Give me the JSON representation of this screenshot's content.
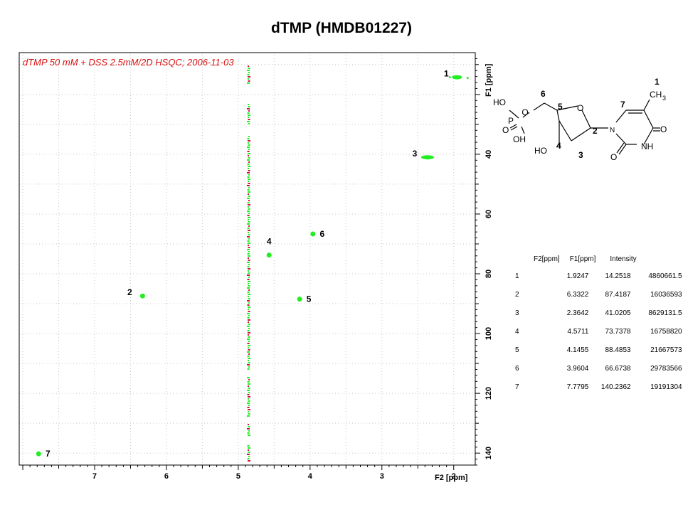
{
  "title": "dTMP (HMDB01227)",
  "chart_data": {
    "type": "scatter",
    "title": "dTMP (HMDB01227)",
    "annotation": "dTMP  50 mM + DSS 2.5mM/2D HSQC; 2006-11-03",
    "xlabel": "F2 [ppm]",
    "ylabel": "F1 [ppm]",
    "xlim": [
      8.05,
      1.7
    ],
    "ylim": [
      144,
      6
    ],
    "x_reversed": true,
    "y_reversed": true,
    "xticks": [
      7,
      6,
      5,
      4,
      3,
      2
    ],
    "yticks": [
      40,
      60,
      80,
      100,
      120,
      140
    ],
    "grid": true,
    "series": [
      {
        "color": "#22ee22",
        "peaks": [
          {
            "label": "1",
            "x": 1.9247,
            "y": 14.2518
          },
          {
            "label": "2",
            "x": 6.3322,
            "y": 87.4187
          },
          {
            "label": "3",
            "x": 2.3642,
            "y": 41.0205
          },
          {
            "label": "4",
            "x": 4.5711,
            "y": 73.7378
          },
          {
            "label": "5",
            "x": 4.1455,
            "y": 88.4853
          },
          {
            "label": "6",
            "x": 3.9604,
            "y": 66.6738
          },
          {
            "label": "7",
            "x": 7.7795,
            "y": 140.2362
          }
        ]
      }
    ],
    "solvent_streak": {
      "x": 4.85,
      "colors": [
        "#22ee22",
        "#cc1144"
      ]
    }
  },
  "table": {
    "headers": [
      "F2[ppm]",
      "F1[ppm]",
      "Intensity"
    ],
    "rows": [
      [
        "1",
        "1.9247",
        "14.2518",
        "4860661.5"
      ],
      [
        "2",
        "6.3322",
        "87.4187",
        "16036593"
      ],
      [
        "3",
        "2.3642",
        "41.0205",
        "8629131.5"
      ],
      [
        "4",
        "4.5711",
        "73.7378",
        "16758820"
      ],
      [
        "5",
        "4.1455",
        "88.4853",
        "21667573"
      ],
      [
        "6",
        "3.9604",
        "66.6738",
        "29783566"
      ],
      [
        "7",
        "7.7795",
        "140.2362",
        "19191304"
      ]
    ]
  },
  "structure": {
    "atom_labels": [
      "HO",
      "P",
      "O",
      "OH",
      "O",
      "O",
      "HO",
      "O",
      "N",
      "N",
      "NH",
      "O",
      "O",
      "CH",
      "3"
    ],
    "position_numbers": [
      "1",
      "2",
      "3",
      "4",
      "5",
      "6",
      "7"
    ]
  }
}
